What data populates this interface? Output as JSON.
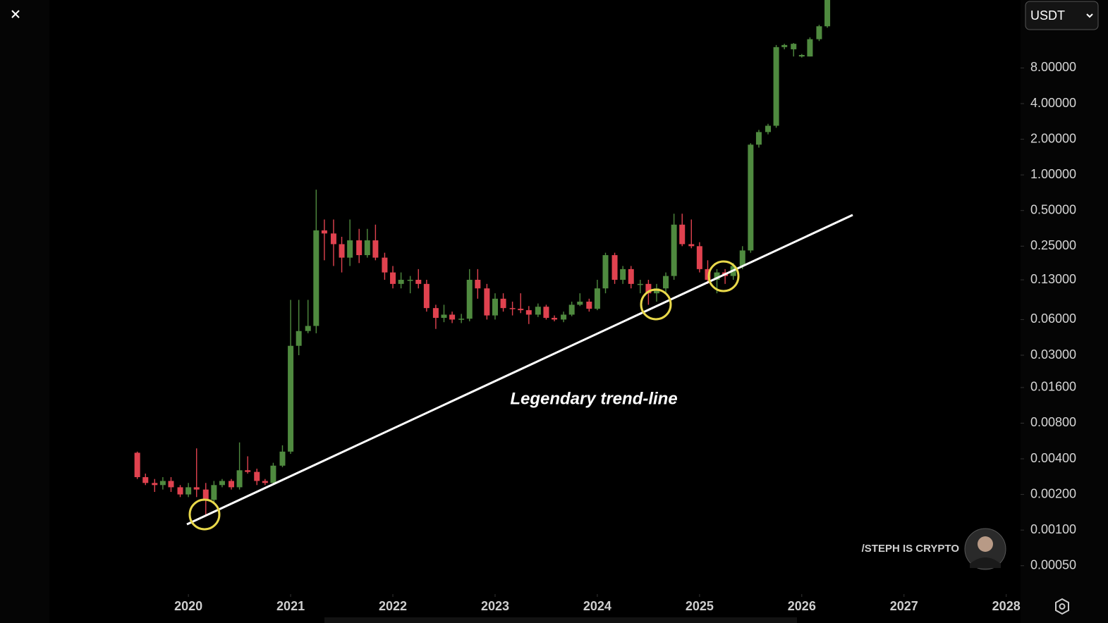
{
  "chart_data": {
    "type": "candlestick",
    "currency": "USDT",
    "annotation": "Legendary trend-line",
    "watermark": "/STEPH IS CRYPTO",
    "log_scale": true,
    "up_color": "#4f8a3f",
    "down_color": "#e0424f",
    "xlim": [
      2018.64,
      2028.14
    ],
    "xticks": [
      2020,
      2021,
      2022,
      2023,
      2024,
      2025,
      2026,
      2027,
      2028
    ],
    "ylim": [
      0.0003,
      30
    ],
    "yticks": [
      {
        "value": 0.0005,
        "label": "0.00050"
      },
      {
        "value": 0.001,
        "label": "0.00100"
      },
      {
        "value": 0.002,
        "label": "0.00200"
      },
      {
        "value": 0.004,
        "label": "0.00400"
      },
      {
        "value": 0.008,
        "label": "0.00800"
      },
      {
        "value": 0.016,
        "label": "0.01600"
      },
      {
        "value": 0.03,
        "label": "0.03000"
      },
      {
        "value": 0.06,
        "label": "0.06000"
      },
      {
        "value": 0.13,
        "label": "0.13000"
      },
      {
        "value": 0.25,
        "label": "0.25000"
      },
      {
        "value": 0.5,
        "label": "0.50000"
      },
      {
        "value": 1,
        "label": "1.00000"
      },
      {
        "value": 2,
        "label": "2.00000"
      },
      {
        "value": 4,
        "label": "4.00000"
      },
      {
        "value": 8,
        "label": "8.00000"
      }
    ],
    "x": [
      2019.5,
      2019.58,
      2019.67,
      2019.75,
      2019.83,
      2019.92,
      2020.0,
      2020.08,
      2020.17,
      2020.25,
      2020.33,
      2020.42,
      2020.5,
      2020.58,
      2020.67,
      2020.75,
      2020.83,
      2020.92,
      2021.0,
      2021.08,
      2021.17,
      2021.25,
      2021.33,
      2021.42,
      2021.5,
      2021.58,
      2021.67,
      2021.75,
      2021.83,
      2021.92,
      2022.0,
      2022.08,
      2022.17,
      2022.25,
      2022.33,
      2022.42,
      2022.5,
      2022.58,
      2022.67,
      2022.75,
      2022.83,
      2022.92,
      2023.0,
      2023.08,
      2023.17,
      2023.25,
      2023.33,
      2023.42,
      2023.5,
      2023.58,
      2023.67,
      2023.75,
      2023.83,
      2023.92,
      2024.0,
      2024.08,
      2024.17,
      2024.25,
      2024.33,
      2024.42,
      2024.5,
      2024.58,
      2024.67,
      2024.75,
      2024.83,
      2024.92,
      2025.0,
      2025.08,
      2025.17,
      2025.25,
      2025.33,
      2025.42,
      2025.5,
      2025.58,
      2025.67,
      2025.75,
      2025.83,
      2025.92,
      2026.0,
      2026.08,
      2026.17,
      2026.25
    ],
    "open": [
      0.0045,
      0.0028,
      0.0025,
      0.0024,
      0.0026,
      0.0023,
      0.002,
      0.0023,
      0.0022,
      0.0018,
      0.0024,
      0.0026,
      0.0023,
      0.0032,
      0.0031,
      0.0026,
      0.0025,
      0.0035,
      0.0046,
      0.036,
      0.048,
      0.053,
      0.34,
      0.32,
      0.26,
      0.2,
      0.28,
      0.21,
      0.28,
      0.2,
      0.15,
      0.12,
      0.13,
      0.13,
      0.12,
      0.075,
      0.062,
      0.066,
      0.06,
      0.061,
      0.13,
      0.11,
      0.065,
      0.09,
      0.075,
      0.074,
      0.072,
      0.066,
      0.077,
      0.062,
      0.06,
      0.066,
      0.08,
      0.085,
      0.074,
      0.11,
      0.21,
      0.13,
      0.16,
      0.12,
      0.12,
      0.1,
      0.11,
      0.14,
      0.38,
      0.26,
      0.25,
      0.16,
      0.13,
      0.15,
      0.14,
      0.17,
      0.23,
      1.8,
      2.3,
      2.6,
      12,
      11.5,
      10,
      10,
      14,
      18
    ],
    "high": [
      0.0046,
      0.003,
      0.0027,
      0.0028,
      0.0028,
      0.0024,
      0.0025,
      0.0049,
      0.0025,
      0.0026,
      0.0027,
      0.0027,
      0.0055,
      0.0042,
      0.0033,
      0.0027,
      0.0037,
      0.0052,
      0.088,
      0.088,
      0.088,
      0.75,
      0.42,
      0.42,
      0.3,
      0.42,
      0.35,
      0.35,
      0.38,
      0.22,
      0.17,
      0.15,
      0.14,
      0.16,
      0.13,
      0.08,
      0.08,
      0.07,
      0.067,
      0.16,
      0.16,
      0.12,
      0.1,
      0.1,
      0.085,
      0.1,
      0.078,
      0.082,
      0.08,
      0.065,
      0.07,
      0.085,
      0.1,
      0.09,
      0.13,
      0.22,
      0.22,
      0.17,
      0.17,
      0.13,
      0.13,
      0.12,
      0.15,
      0.47,
      0.47,
      0.42,
      0.27,
      0.19,
      0.16,
      0.16,
      0.18,
      0.25,
      1.85,
      2.4,
      2.7,
      12.5,
      12.8,
      13,
      10.5,
      14.5,
      18.5,
      35
    ],
    "low": [
      0.0027,
      0.0024,
      0.0021,
      0.0022,
      0.0021,
      0.0019,
      0.0019,
      0.0019,
      0.0013,
      0.0017,
      0.0023,
      0.0022,
      0.0022,
      0.003,
      0.0024,
      0.0024,
      0.0024,
      0.0034,
      0.0044,
      0.03,
      0.046,
      0.046,
      0.19,
      0.17,
      0.15,
      0.17,
      0.18,
      0.2,
      0.19,
      0.13,
      0.11,
      0.11,
      0.1,
      0.11,
      0.07,
      0.05,
      0.057,
      0.056,
      0.056,
      0.058,
      0.09,
      0.06,
      0.06,
      0.07,
      0.065,
      0.068,
      0.055,
      0.063,
      0.06,
      0.058,
      0.057,
      0.064,
      0.078,
      0.07,
      0.072,
      0.1,
      0.12,
      0.12,
      0.11,
      0.1,
      0.08,
      0.085,
      0.1,
      0.13,
      0.25,
      0.24,
      0.15,
      0.12,
      0.1,
      0.12,
      0.13,
      0.16,
      0.22,
      1.7,
      2.2,
      2.5,
      11.5,
      10,
      9.8,
      10,
      13.5,
      17.5
    ],
    "close": [
      0.0028,
      0.0025,
      0.0024,
      0.0026,
      0.0023,
      0.002,
      0.0023,
      0.0022,
      0.0018,
      0.0024,
      0.0026,
      0.0023,
      0.0032,
      0.0031,
      0.0026,
      0.0025,
      0.0035,
      0.0046,
      0.036,
      0.048,
      0.053,
      0.34,
      0.32,
      0.26,
      0.2,
      0.28,
      0.21,
      0.28,
      0.2,
      0.15,
      0.12,
      0.13,
      0.13,
      0.12,
      0.075,
      0.062,
      0.066,
      0.06,
      0.061,
      0.13,
      0.11,
      0.065,
      0.09,
      0.075,
      0.074,
      0.072,
      0.066,
      0.077,
      0.062,
      0.06,
      0.066,
      0.08,
      0.085,
      0.074,
      0.11,
      0.21,
      0.13,
      0.16,
      0.12,
      0.12,
      0.1,
      0.11,
      0.14,
      0.38,
      0.26,
      0.25,
      0.16,
      0.13,
      0.15,
      0.14,
      0.17,
      0.23,
      1.8,
      2.3,
      2.6,
      12,
      12.5,
      12.8,
      10.3,
      14,
      18,
      35
    ]
  }
}
